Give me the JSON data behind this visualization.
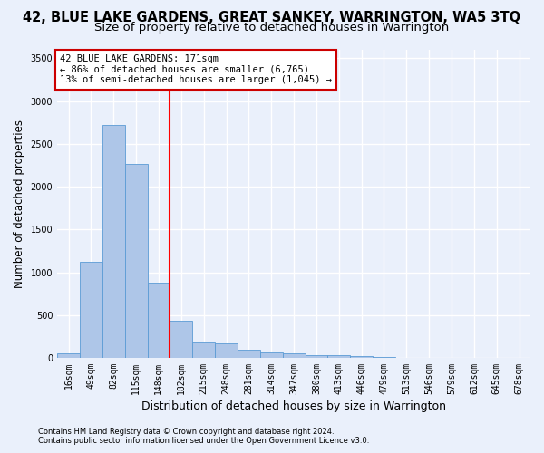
{
  "title": "42, BLUE LAKE GARDENS, GREAT SANKEY, WARRINGTON, WA5 3TQ",
  "subtitle": "Size of property relative to detached houses in Warrington",
  "xlabel": "Distribution of detached houses by size in Warrington",
  "ylabel": "Number of detached properties",
  "bin_labels": [
    "16sqm",
    "49sqm",
    "82sqm",
    "115sqm",
    "148sqm",
    "182sqm",
    "215sqm",
    "248sqm",
    "281sqm",
    "314sqm",
    "347sqm",
    "380sqm",
    "413sqm",
    "446sqm",
    "479sqm",
    "513sqm",
    "546sqm",
    "579sqm",
    "612sqm",
    "645sqm",
    "678sqm"
  ],
  "bar_values": [
    50,
    1120,
    2720,
    2270,
    880,
    430,
    175,
    165,
    90,
    60,
    50,
    35,
    30,
    20,
    5,
    0,
    0,
    0,
    0,
    0,
    0
  ],
  "bar_color": "#aec6e8",
  "bar_edgecolor": "#5b9bd5",
  "vline_bin_index": 5,
  "annotation_line1": "42 BLUE LAKE GARDENS: 171sqm",
  "annotation_line2": "← 86% of detached houses are smaller (6,765)",
  "annotation_line3": "13% of semi-detached houses are larger (1,045) →",
  "annotation_box_edgecolor": "#cc0000",
  "ylim": [
    0,
    3600
  ],
  "yticks": [
    0,
    500,
    1000,
    1500,
    2000,
    2500,
    3000,
    3500
  ],
  "footnote1": "Contains HM Land Registry data © Crown copyright and database right 2024.",
  "footnote2": "Contains public sector information licensed under the Open Government Licence v3.0.",
  "background_color": "#eaf0fb",
  "grid_color": "#ffffff",
  "title_fontsize": 10.5,
  "subtitle_fontsize": 9.5,
  "xlabel_fontsize": 9,
  "ylabel_fontsize": 8.5,
  "tick_fontsize": 7,
  "annot_fontsize": 7.5,
  "footnote_fontsize": 6
}
